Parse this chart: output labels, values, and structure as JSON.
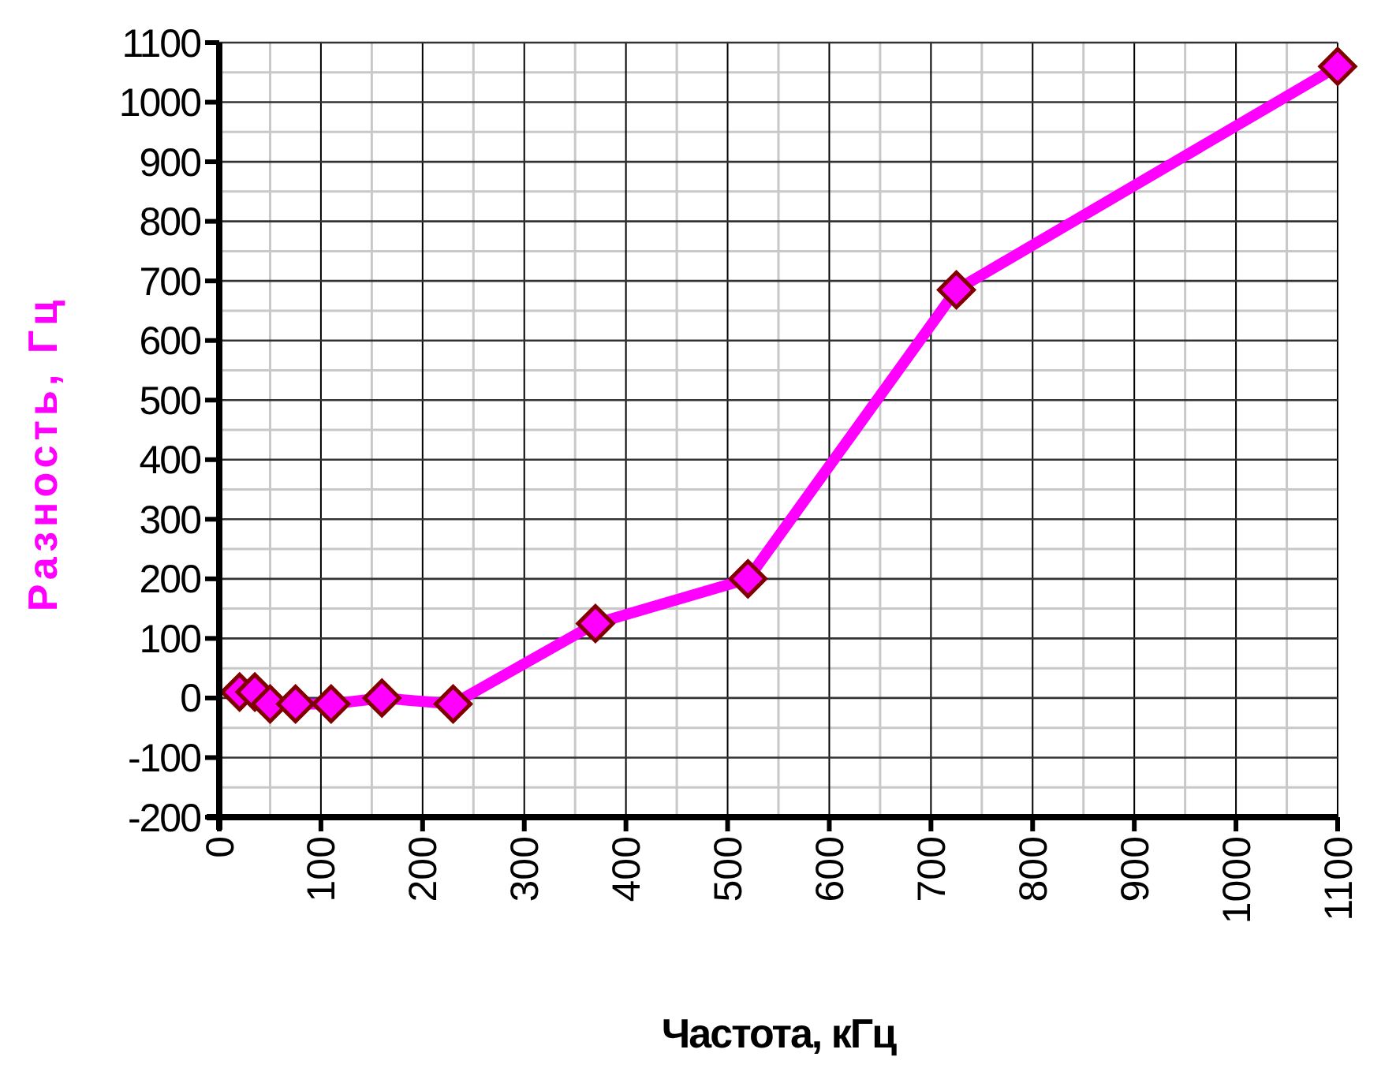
{
  "chart_data": {
    "type": "line",
    "xlabel": "Частота, кГц",
    "ylabel": "Разность, Гц",
    "x": [
      20,
      35,
      50,
      75,
      110,
      160,
      230,
      370,
      520,
      725,
      1100
    ],
    "series": [
      {
        "color": "#ff00ff",
        "values": [
          10,
          10,
          -10,
          -10,
          -10,
          0,
          -10,
          125,
          200,
          685,
          1060
        ]
      }
    ],
    "xlim": [
      0,
      1100
    ],
    "xticks": [
      0,
      100,
      200,
      300,
      400,
      500,
      600,
      700,
      800,
      900,
      1000,
      1100
    ],
    "ylim": [
      -200,
      1100
    ],
    "yticks": [
      -200,
      -100,
      0,
      100,
      200,
      300,
      400,
      500,
      600,
      700,
      800,
      900,
      1000,
      1100
    ],
    "grid": true,
    "marker": "diamond",
    "line_style": "solid"
  }
}
